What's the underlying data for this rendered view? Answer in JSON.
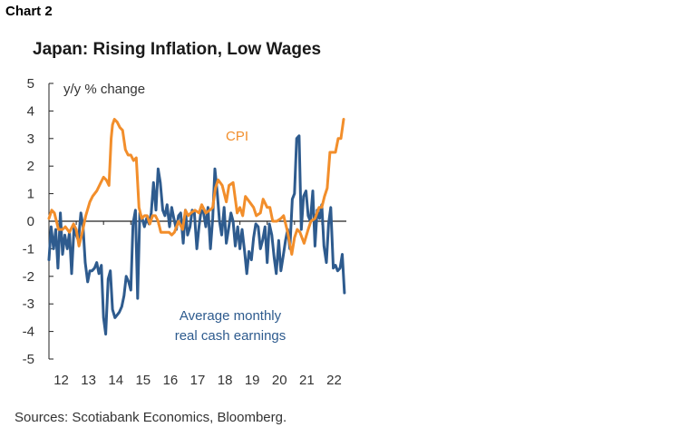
{
  "header": {
    "chart_label": "Chart 2",
    "title": "Japan: Rising Inflation, Low Wages"
  },
  "footer": {
    "source": "Sources: Scotiabank Economics, Bloomberg."
  },
  "chart_data": {
    "type": "line",
    "title": "Japan: Rising Inflation, Low Wages",
    "ylabel": "y/y % change",
    "xlabel": "",
    "ylim": [
      -5,
      5
    ],
    "xlim": [
      2012,
      2022.9
    ],
    "yticks": [
      "5",
      "4",
      "3",
      "2",
      "1",
      "0",
      "-1",
      "-2",
      "-3",
      "-4",
      "-5"
    ],
    "xticks": [
      "12",
      "13",
      "14",
      "15",
      "16",
      "17",
      "18",
      "19",
      "20",
      "21",
      "22"
    ],
    "grid": false,
    "legend": "inline labels",
    "colors": {
      "cpi": "#f28e2b",
      "earnings": "#2e5b8e"
    },
    "annotations": {
      "cpi": "CPI",
      "earnings_line1": "Average monthly",
      "earnings_line2": "real cash earnings"
    },
    "series": [
      {
        "key": "cpi",
        "x": [
          2012.0,
          2012.1,
          2012.2,
          2012.35,
          2012.5,
          2012.6,
          2012.75,
          2012.9,
          2013.0,
          2013.1,
          2013.2,
          2013.35,
          2013.5,
          2013.6,
          2013.75,
          2013.9,
          2014.0,
          2014.1,
          2014.2,
          2014.28,
          2014.33,
          2014.4,
          2014.5,
          2014.6,
          2014.7,
          2014.8,
          2014.9,
          2015.0,
          2015.1,
          2015.2,
          2015.3,
          2015.4,
          2015.5,
          2015.6,
          2015.7,
          2015.8,
          2015.9,
          2016.0,
          2016.1,
          2016.2,
          2016.3,
          2016.4,
          2016.5,
          2016.6,
          2016.75,
          2016.9,
          2017.0,
          2017.1,
          2017.2,
          2017.35,
          2017.5,
          2017.6,
          2017.75,
          2017.9,
          2018.0,
          2018.1,
          2018.2,
          2018.35,
          2018.5,
          2018.6,
          2018.75,
          2018.9,
          2019.0,
          2019.1,
          2019.2,
          2019.35,
          2019.5,
          2019.6,
          2019.75,
          2019.85,
          2020.0,
          2020.1,
          2020.2,
          2020.35,
          2020.5,
          2020.6,
          2020.75,
          2020.9,
          2021.0,
          2021.1,
          2021.2,
          2021.35,
          2021.5,
          2021.6,
          2021.75,
          2021.9,
          2022.0,
          2022.1,
          2022.2,
          2022.3,
          2022.4,
          2022.5,
          2022.6,
          2022.7,
          2022.8
        ],
        "values": [
          0.1,
          0.4,
          0.3,
          -0.3,
          -0.3,
          -0.2,
          -0.4,
          -0.1,
          -0.3,
          -0.9,
          -0.5,
          0.2,
          0.7,
          0.9,
          1.1,
          1.4,
          1.6,
          1.5,
          1.3,
          3.0,
          3.5,
          3.7,
          3.6,
          3.4,
          3.3,
          2.6,
          2.4,
          2.4,
          2.2,
          2.3,
          0.5,
          0.1,
          0.2,
          0.2,
          -0.1,
          0.2,
          0.2,
          0.0,
          -0.4,
          -0.4,
          -0.4,
          -0.4,
          -0.5,
          -0.4,
          0.0,
          -0.3,
          0.4,
          0.2,
          0.3,
          0.4,
          0.3,
          0.6,
          0.3,
          0.4,
          0.5,
          1.2,
          1.5,
          1.3,
          0.7,
          1.3,
          1.4,
          0.3,
          0.5,
          0.2,
          0.9,
          0.7,
          0.5,
          0.2,
          0.3,
          0.8,
          0.5,
          0.5,
          0.0,
          0.0,
          0.1,
          0.2,
          -0.4,
          -1.2,
          -0.6,
          -0.3,
          -0.4,
          -0.8,
          -0.3,
          0.0,
          0.1,
          0.5,
          0.5,
          0.9,
          1.2,
          2.5,
          2.5,
          2.5,
          3.0,
          3.0,
          3.7
        ]
      },
      {
        "key": "earnings",
        "x": [
          2012.0,
          2012.08,
          2012.17,
          2012.25,
          2012.33,
          2012.42,
          2012.5,
          2012.58,
          2012.67,
          2012.75,
          2012.83,
          2012.92,
          2013.0,
          2013.08,
          2013.17,
          2013.25,
          2013.33,
          2013.42,
          2013.5,
          2013.58,
          2013.67,
          2013.75,
          2013.83,
          2013.92,
          2014.0,
          2014.08,
          2014.17,
          2014.25,
          2014.33,
          2014.42,
          2014.5,
          2014.58,
          2014.67,
          2014.75,
          2014.83,
          2014.92,
          2015.0,
          2015.08,
          2015.17,
          2015.25,
          2015.33,
          2015.42,
          2015.5,
          2015.58,
          2015.67,
          2015.75,
          2015.83,
          2015.92,
          2016.0,
          2016.08,
          2016.17,
          2016.25,
          2016.33,
          2016.42,
          2016.5,
          2016.58,
          2016.67,
          2016.75,
          2016.83,
          2016.92,
          2017.0,
          2017.08,
          2017.17,
          2017.25,
          2017.33,
          2017.42,
          2017.5,
          2017.58,
          2017.67,
          2017.75,
          2017.83,
          2017.92,
          2018.0,
          2018.08,
          2018.17,
          2018.25,
          2018.33,
          2018.42,
          2018.5,
          2018.58,
          2018.67,
          2018.75,
          2018.83,
          2018.92,
          2019.0,
          2019.08,
          2019.17,
          2019.25,
          2019.33,
          2019.42,
          2019.5,
          2019.58,
          2019.67,
          2019.75,
          2019.83,
          2019.92,
          2020.0,
          2020.08,
          2020.17,
          2020.25,
          2020.33,
          2020.42,
          2020.5,
          2020.58,
          2020.67,
          2020.75,
          2020.83,
          2020.92,
          2021.0,
          2021.08,
          2021.17,
          2021.25,
          2021.33,
          2021.42,
          2021.5,
          2021.58,
          2021.67,
          2021.75,
          2021.83,
          2021.92,
          2022.0,
          2022.08,
          2022.17,
          2022.25,
          2022.33,
          2022.42,
          2022.5,
          2022.58,
          2022.67,
          2022.75,
          2022.83
        ],
        "values": [
          -1.4,
          -0.2,
          -1.0,
          -0.3,
          -1.7,
          0.3,
          -1.2,
          -0.5,
          -1.0,
          -0.4,
          -1.9,
          -0.2,
          -0.5,
          -0.7,
          0.3,
          -0.2,
          -1.5,
          -2.2,
          -1.8,
          -1.8,
          -1.7,
          -1.5,
          -1.9,
          -1.6,
          -3.5,
          -4.1,
          -2.1,
          -1.8,
          -3.2,
          -3.5,
          -3.4,
          -3.3,
          -3.1,
          -2.7,
          -2.0,
          -2.2,
          -2.5,
          -0.1,
          0.4,
          -2.8,
          0.3,
          0.1,
          -0.2,
          0.1,
          -0.1,
          0.3,
          1.4,
          0.4,
          1.9,
          1.4,
          0.4,
          0.2,
          0.6,
          -0.2,
          0.5,
          0.1,
          -0.3,
          0.2,
          0.3,
          -0.8,
          0.4,
          -0.5,
          -0.2,
          0.4,
          0.3,
          -1.0,
          -0.2,
          0.4,
          0.3,
          -0.2,
          0.5,
          -1.0,
          0.1,
          1.9,
          1.0,
          0.0,
          -0.5,
          0.5,
          -0.8,
          -0.3,
          0.3,
          0.0,
          -0.9,
          -0.2,
          -1.0,
          -0.3,
          -1.1,
          -1.9,
          -1.1,
          -1.4,
          -0.6,
          -0.1,
          -0.2,
          -1.0,
          -0.7,
          -0.2,
          -1.5,
          -0.1,
          -0.5,
          -1.3,
          -1.9,
          -0.7,
          -1.8,
          -1.3,
          -0.7,
          -0.3,
          -1.0,
          0.8,
          1.0,
          3.0,
          3.1,
          -0.3,
          0.9,
          1.1,
          0.2,
          0.0,
          1.1,
          -0.9,
          0.4,
          0.1,
          0.6,
          -0.9,
          -1.5,
          -0.1,
          0.5,
          -1.7,
          -1.6,
          -1.8,
          -1.7,
          -1.2,
          -2.6
        ]
      }
    ]
  }
}
